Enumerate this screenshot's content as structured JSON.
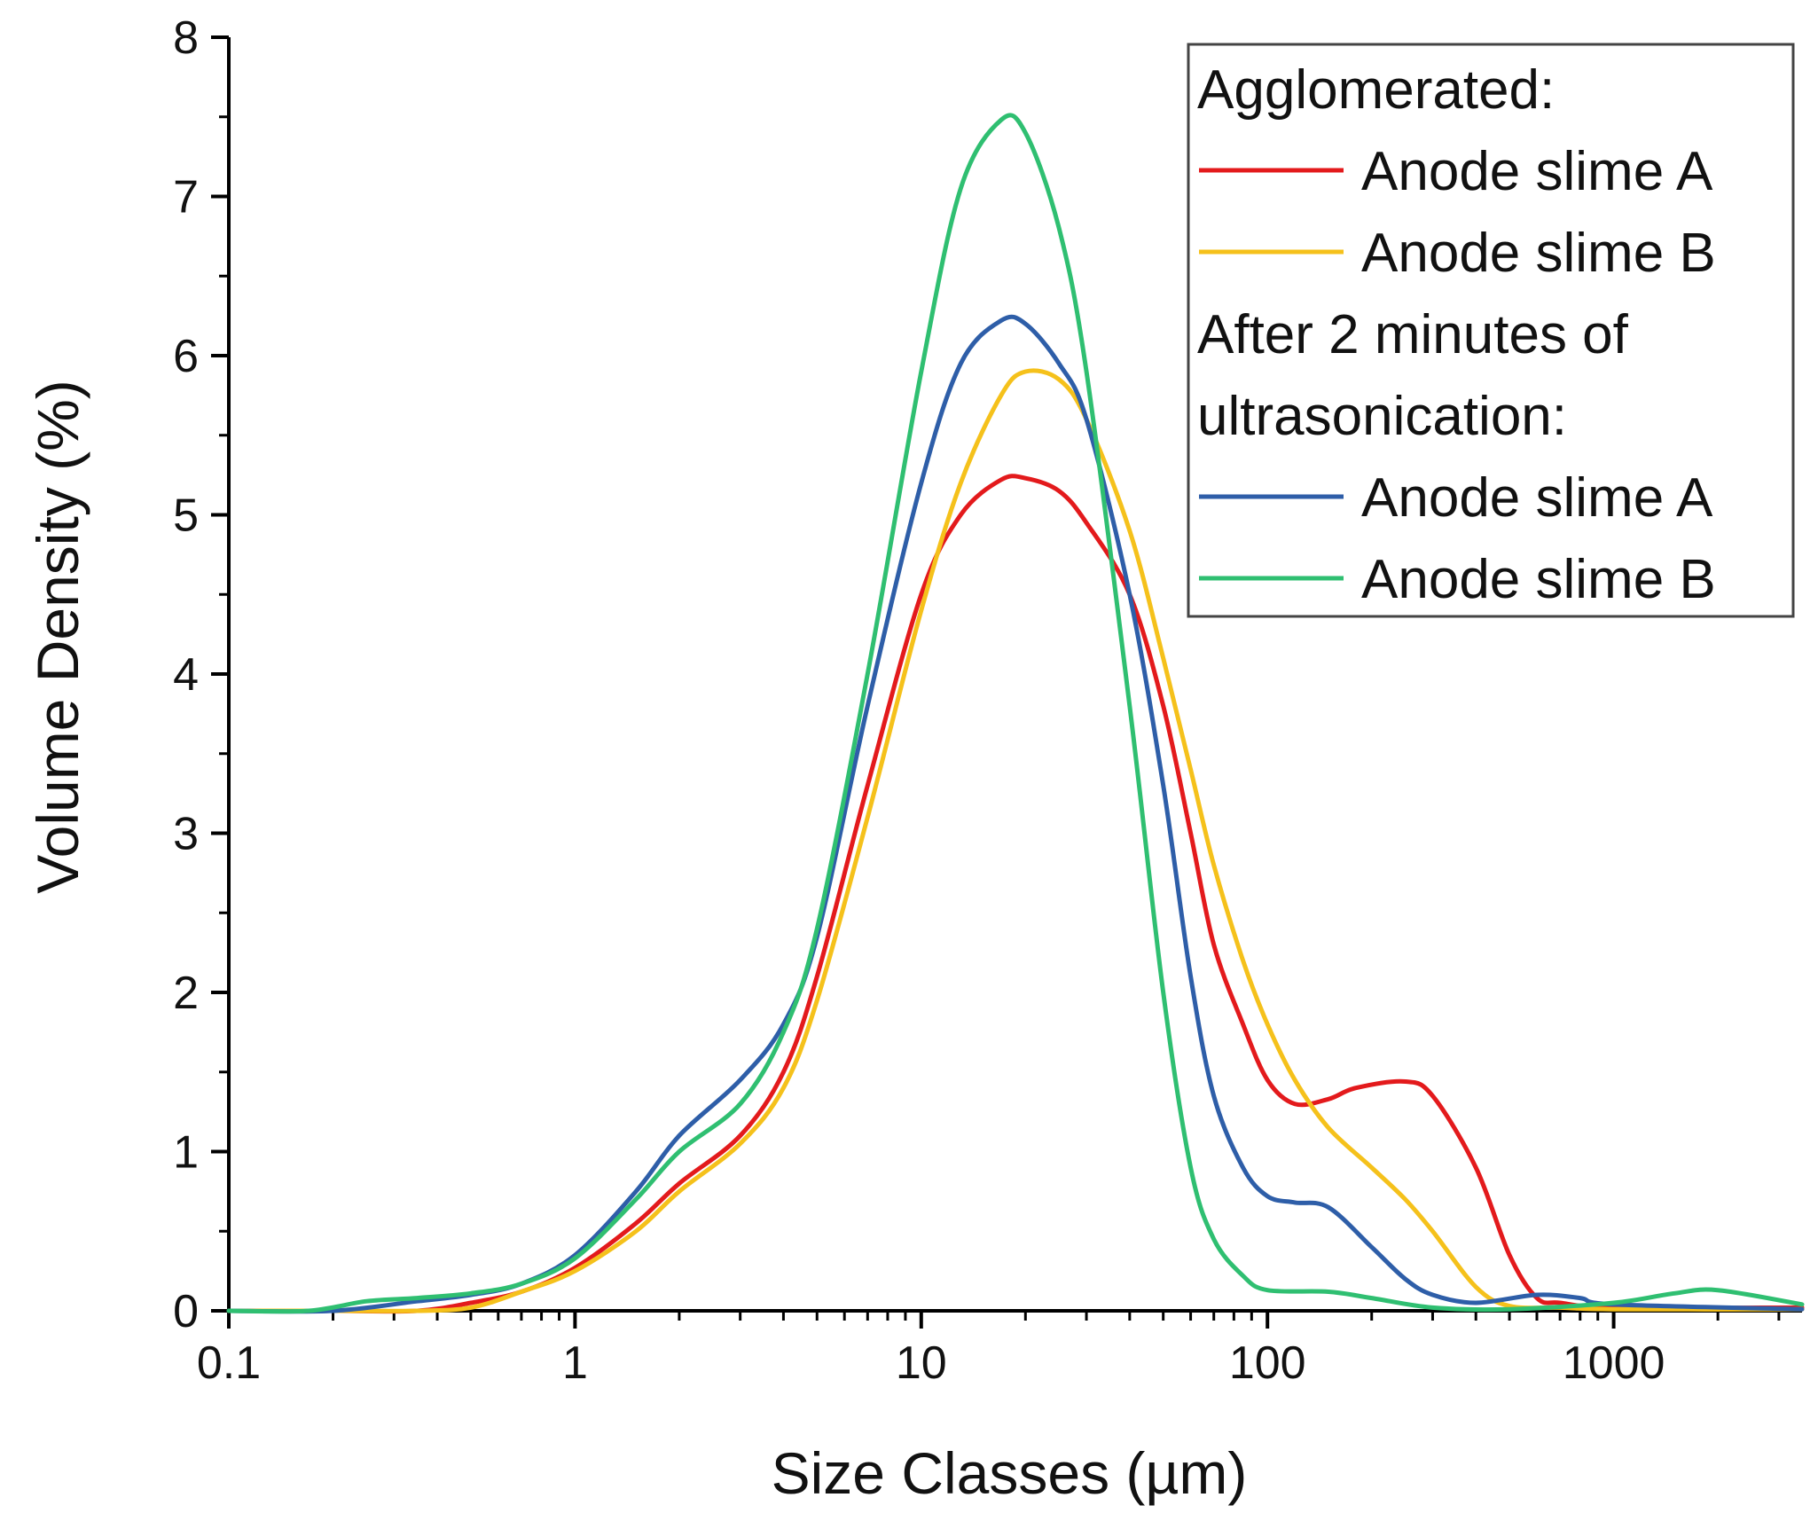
{
  "chart_data": {
    "type": "line",
    "title": "",
    "xlabel": "Size Classes (µm)",
    "ylabel": "Volume Density (%)",
    "xscale": "log",
    "xlim": [
      0.1,
      3500
    ],
    "ylim": [
      0,
      8
    ],
    "x_ticks": [
      {
        "value": 0.1,
        "label": "0.1"
      },
      {
        "value": 1,
        "label": "1"
      },
      {
        "value": 10,
        "label": "10"
      },
      {
        "value": 100,
        "label": "100"
      },
      {
        "value": 1000,
        "label": "1000"
      }
    ],
    "y_ticks": [
      {
        "value": 0,
        "label": "0"
      },
      {
        "value": 1,
        "label": "1"
      },
      {
        "value": 2,
        "label": "2"
      },
      {
        "value": 3,
        "label": "3"
      },
      {
        "value": 4,
        "label": "4"
      },
      {
        "value": 5,
        "label": "5"
      },
      {
        "value": 6,
        "label": "6"
      },
      {
        "value": 7,
        "label": "7"
      },
      {
        "value": 8,
        "label": "8"
      }
    ],
    "grid": false,
    "legend": {
      "placement": "top-right",
      "groups": [
        {
          "heading": "Agglomerated:",
          "entries": [
            {
              "label": "Anode slime A",
              "series_index": 0
            },
            {
              "label": "Anode slime B",
              "series_index": 1
            }
          ]
        },
        {
          "heading_lines": [
            "After 2 minutes of",
            "ultrasonication:"
          ],
          "entries": [
            {
              "label": "Anode slime A",
              "series_index": 2
            },
            {
              "label": "Anode slime B",
              "series_index": 3
            }
          ]
        }
      ]
    },
    "series": [
      {
        "name": "Agglomerated: Anode slime A",
        "color": "#e31a1c",
        "x": [
          0.1,
          0.2,
          0.35,
          0.5,
          0.7,
          1,
          1.5,
          2,
          3,
          4,
          5,
          7,
          10,
          13,
          17,
          20,
          25,
          30,
          40,
          50,
          60,
          70,
          85,
          100,
          120,
          150,
          180,
          250,
          300,
          400,
          500,
          600,
          700,
          1000,
          3500
        ],
        "values": [
          0,
          0,
          0,
          0.05,
          0.12,
          0.27,
          0.55,
          0.8,
          1.1,
          1.5,
          2.1,
          3.3,
          4.5,
          5.0,
          5.22,
          5.23,
          5.15,
          4.95,
          4.5,
          3.8,
          3.0,
          2.3,
          1.8,
          1.45,
          1.3,
          1.33,
          1.4,
          1.44,
          1.35,
          0.9,
          0.35,
          0.08,
          0.05,
          0.02,
          0.02
        ]
      },
      {
        "name": "Agglomerated: Anode slime B",
        "color": "#f5c11b",
        "x": [
          0.1,
          0.2,
          0.35,
          0.5,
          0.7,
          1,
          1.5,
          2,
          3,
          4,
          5,
          7,
          10,
          13,
          17,
          20,
          25,
          30,
          40,
          50,
          60,
          70,
          85,
          100,
          120,
          150,
          200,
          250,
          300,
          400,
          500,
          700,
          1000,
          3500
        ],
        "values": [
          0,
          0,
          0,
          0.02,
          0.12,
          0.25,
          0.5,
          0.75,
          1.05,
          1.4,
          1.95,
          3.1,
          4.4,
          5.2,
          5.75,
          5.9,
          5.85,
          5.6,
          4.9,
          4.1,
          3.4,
          2.8,
          2.2,
          1.8,
          1.45,
          1.15,
          0.9,
          0.7,
          0.5,
          0.15,
          0.03,
          0.02,
          0.01,
          0.01
        ]
      },
      {
        "name": "After 2 minutes of ultrasonication: Anode slime A",
        "color": "#2e5ea8",
        "x": [
          0.1,
          0.2,
          0.35,
          0.5,
          0.7,
          1,
          1.5,
          2,
          3,
          4,
          5,
          7,
          10,
          13,
          17,
          20,
          25,
          30,
          40,
          50,
          60,
          70,
          85,
          100,
          120,
          150,
          200,
          250,
          300,
          400,
          600,
          800,
          1000,
          3500
        ],
        "values": [
          0,
          0,
          0.06,
          0.1,
          0.17,
          0.35,
          0.75,
          1.1,
          1.45,
          1.8,
          2.35,
          3.8,
          5.2,
          5.95,
          6.22,
          6.2,
          5.95,
          5.6,
          4.5,
          3.3,
          2.1,
          1.35,
          0.9,
          0.72,
          0.68,
          0.65,
          0.4,
          0.2,
          0.1,
          0.05,
          0.1,
          0.08,
          0.04,
          0.01
        ]
      },
      {
        "name": "After 2 minutes of ultrasonication: Anode slime B",
        "color": "#2fbf71",
        "x": [
          0.1,
          0.17,
          0.25,
          0.35,
          0.5,
          0.7,
          1,
          1.5,
          2,
          3,
          4,
          5,
          7,
          10,
          13,
          17,
          20,
          25,
          30,
          40,
          50,
          60,
          70,
          85,
          100,
          150,
          200,
          300,
          500,
          1000,
          1500,
          2000,
          3500
        ],
        "values": [
          0,
          0,
          0.06,
          0.08,
          0.11,
          0.17,
          0.33,
          0.7,
          1.0,
          1.3,
          1.75,
          2.4,
          4.0,
          5.9,
          7.05,
          7.48,
          7.4,
          6.8,
          5.9,
          3.8,
          2.0,
          0.9,
          0.45,
          0.22,
          0.13,
          0.12,
          0.08,
          0.02,
          0.01,
          0.05,
          0.11,
          0.13,
          0.04
        ]
      }
    ]
  }
}
